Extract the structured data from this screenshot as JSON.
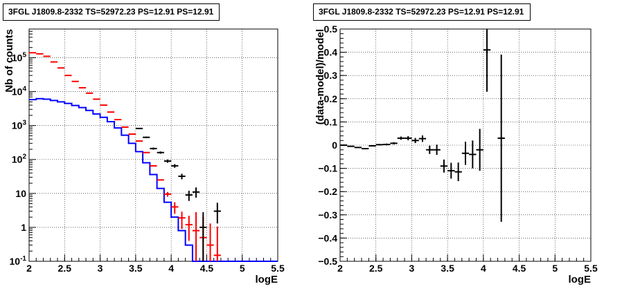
{
  "panels": [
    {
      "title": "3FGL J1809.8-2332 TS=52972.23 PS=12.91 PS=12.91",
      "xlabel": "logE",
      "ylabel": "Nb of counts",
      "xlim": [
        2,
        5.5
      ],
      "ylim": [
        0.1,
        700000
      ],
      "yscale": "log",
      "x_ticks": [
        "2",
        "2.5",
        "3",
        "3.5",
        "4",
        "4.5",
        "5",
        "5.5"
      ],
      "y_ticks": [
        "10^-1",
        "1",
        "10",
        "10^2",
        "10^3",
        "10^4",
        "10^5"
      ],
      "grid": true
    },
    {
      "title": "3FGL J1809.8-2332 TS=52972.23 PS=12.91 PS=12.91",
      "xlabel": "logE",
      "ylabel": "(data-model)/model",
      "xlim": [
        2,
        5.5
      ],
      "ylim": [
        -0.5,
        0.5
      ],
      "yscale": "linear",
      "x_ticks": [
        "2",
        "2.5",
        "3",
        "3.5",
        "4",
        "4.5",
        "5",
        "5.5"
      ],
      "y_ticks": [
        "-0.5",
        "-0.4",
        "-0.3",
        "-0.2",
        "-0.1",
        "0",
        "0.1",
        "0.2",
        "0.3",
        "0.4",
        "0.5"
      ],
      "grid": true
    }
  ],
  "chart_data": [
    {
      "type": "scatter",
      "title": "3FGL J1809.8-2332 TS=52972.23 PS=12.91 PS=12.91",
      "xlabel": "logE",
      "ylabel": "Nb of counts",
      "xlim": [
        2,
        5.5
      ],
      "ylim": [
        0.1,
        700000
      ],
      "yscale": "log",
      "grid": true,
      "bin_edges": [
        2.0,
        2.1,
        2.2,
        2.3,
        2.4,
        2.5,
        2.6,
        2.7,
        2.8,
        2.9,
        3.0,
        3.1,
        3.2,
        3.3,
        3.4,
        3.5,
        3.6,
        3.7,
        3.8,
        3.9,
        4.0,
        4.1,
        4.2,
        4.3,
        4.4,
        4.5,
        4.6,
        4.7,
        4.8,
        4.9,
        5.0,
        5.1,
        5.2,
        5.3,
        5.4,
        5.5
      ],
      "series": [
        {
          "color": "#0000ff",
          "style": "histogram",
          "values": [
            5800,
            6200,
            6000,
            5500,
            5000,
            4500,
            3900,
            3400,
            2800,
            2200,
            1750,
            1300,
            850,
            520,
            300,
            170,
            80,
            36,
            14,
            5.5,
            2.0,
            0.8,
            0.3,
            0.1,
            0.1,
            0.1,
            0.1,
            0.1,
            0.1,
            0.1,
            0.1,
            0.1,
            0.1,
            0.1,
            0.1
          ]
        },
        {
          "color": "#ff0000",
          "style": "points_with_errors",
          "x": [
            2.05,
            2.15,
            2.25,
            2.35,
            2.45,
            2.55,
            2.65,
            2.75,
            2.85,
            2.95,
            3.05,
            3.15,
            3.25,
            3.35,
            3.45,
            3.55,
            3.65,
            3.75,
            3.85,
            3.95,
            4.05,
            4.15,
            4.25,
            4.35,
            4.45,
            4.55,
            4.65
          ],
          "y": [
            140000,
            130000,
            110000,
            75000,
            50000,
            30000,
            20000,
            13000,
            9000,
            6000,
            4000,
            2500,
            1500,
            900,
            560,
            350,
            160,
            65,
            25,
            9.5,
            4.0,
            1.9,
            1.2,
            0.8,
            0.5,
            0.3,
            0.15
          ],
          "yerr_low": [
            0,
            0,
            0,
            0,
            0,
            0,
            0,
            0,
            0,
            0,
            0,
            0,
            0,
            0,
            0,
            0,
            0,
            0,
            0,
            1.5,
            1.5,
            1.0,
            0.8,
            0.7,
            0.45,
            0.28,
            0.14
          ],
          "yerr_high": [
            0,
            0,
            0,
            0,
            0,
            0,
            0,
            0,
            0,
            0,
            0,
            0,
            0,
            0,
            0,
            0,
            0,
            0,
            0,
            1.5,
            1.5,
            1.0,
            1.0,
            2.0,
            1.5,
            1.0,
            0.9
          ]
        },
        {
          "color": "#000000",
          "style": "points_with_errors",
          "x": [
            3.55,
            3.65,
            3.75,
            3.85,
            3.95,
            4.05,
            4.15,
            4.25,
            4.35,
            4.45,
            4.65
          ],
          "y": [
            820,
            450,
            210,
            160,
            90,
            65,
            32,
            9,
            11,
            1.0,
            3.0
          ],
          "yerr_low": [
            30,
            22,
            15,
            12,
            10,
            8,
            6,
            3,
            3.5,
            0.9,
            1.7
          ],
          "yerr_high": [
            30,
            22,
            15,
            12,
            10,
            8,
            6,
            3,
            4.0,
            1.8,
            2.3
          ]
        }
      ]
    },
    {
      "type": "scatter",
      "title": "3FGL J1809.8-2332 TS=52972.23 PS=12.91 PS=12.91",
      "xlabel": "logE",
      "ylabel": "(data-model)/model",
      "xlim": [
        2,
        5.5
      ],
      "ylim": [
        -0.5,
        0.5
      ],
      "grid": true,
      "series": [
        {
          "color": "#000000",
          "style": "points_with_errors",
          "x": [
            2.05,
            2.15,
            2.25,
            2.35,
            2.45,
            2.55,
            2.65,
            2.75,
            2.85,
            2.95,
            3.05,
            3.15,
            3.25,
            3.35,
            3.45,
            3.55,
            3.65,
            3.75,
            3.85,
            3.95,
            4.05,
            4.25
          ],
          "y": [
            0.0,
            -0.005,
            -0.01,
            -0.015,
            -0.003,
            0.002,
            0.003,
            0.008,
            0.03,
            0.03,
            0.02,
            0.028,
            -0.02,
            -0.02,
            -0.09,
            -0.11,
            -0.115,
            -0.035,
            -0.04,
            -0.02,
            0.41,
            0.03
          ],
          "xerr": 0.05,
          "yerr": [
            0.002,
            0.002,
            0.002,
            0.003,
            0.003,
            0.003,
            0.004,
            0.005,
            0.007,
            0.009,
            0.011,
            0.014,
            0.018,
            0.022,
            0.028,
            0.034,
            0.04,
            0.05,
            0.06,
            0.09,
            0.18,
            0.36
          ]
        }
      ]
    }
  ]
}
